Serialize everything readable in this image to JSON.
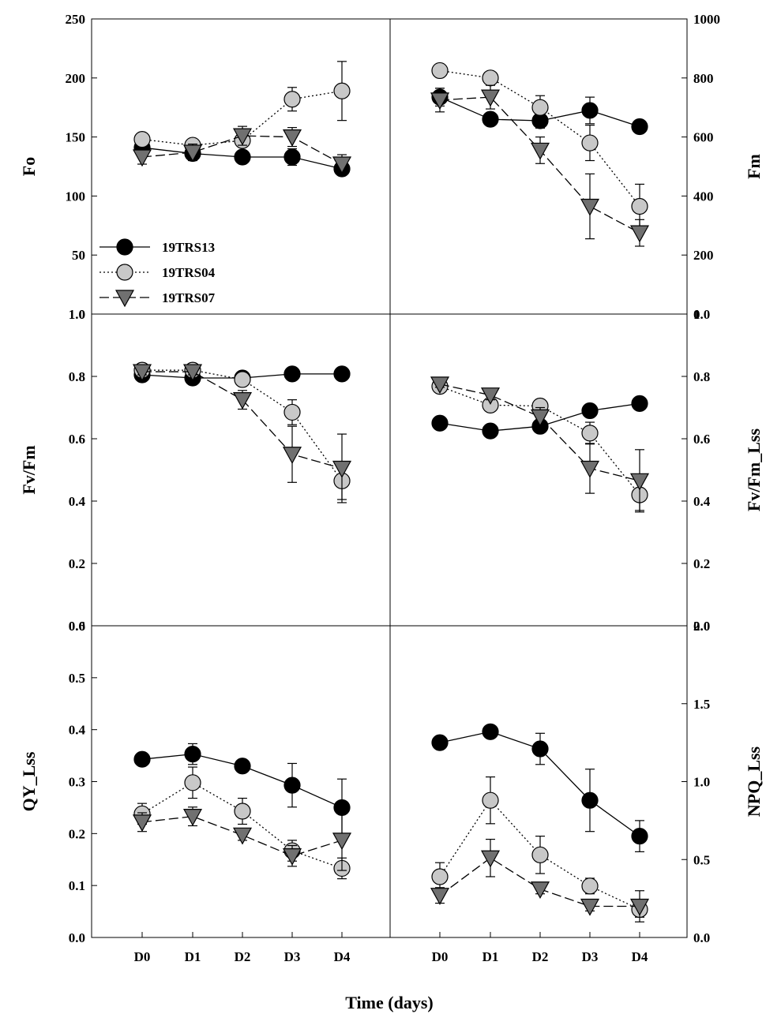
{
  "figure": {
    "x_axis_title": "Time (days)",
    "x_categories": [
      "D0",
      "D1",
      "D2",
      "D3",
      "D4"
    ]
  },
  "legend": [
    {
      "name": "19TRS13",
      "marker": "circle",
      "fill": "#000000",
      "line": "solid"
    },
    {
      "name": "19TRS04",
      "marker": "circle",
      "fill": "#c8c8c8",
      "line": "dotted"
    },
    {
      "name": "19TRS07",
      "marker": "triangle-down",
      "fill": "#707070",
      "line": "dashed"
    }
  ],
  "chart_data": [
    {
      "type": "line",
      "ylabel": "Fo",
      "yaxis_side": "left",
      "ylim": [
        0,
        250
      ],
      "yticks": [
        "0",
        "50",
        "100",
        "150",
        "200",
        "250"
      ],
      "categories": [
        "D0",
        "D1",
        "D2",
        "D3",
        "D4"
      ],
      "series": [
        {
          "name": "19TRS13",
          "values": [
            141,
            136,
            133,
            133,
            123
          ],
          "errors": [
            5,
            3,
            3,
            7,
            4
          ]
        },
        {
          "name": "19TRS04",
          "values": [
            148,
            143,
            147,
            182,
            189
          ],
          "errors": [
            4,
            3,
            4,
            10,
            25
          ]
        },
        {
          "name": "19TRS07",
          "values": [
            133,
            137,
            151,
            150,
            127
          ],
          "errors": [
            6,
            7,
            8,
            8,
            8
          ]
        }
      ]
    },
    {
      "type": "line",
      "ylabel": "Fm",
      "yaxis_side": "right",
      "ylim": [
        0,
        1000
      ],
      "yticks": [
        "0",
        "200",
        "400",
        "600",
        "800",
        "1000"
      ],
      "categories": [
        "D0",
        "D1",
        "D2",
        "D3",
        "D4"
      ],
      "series": [
        {
          "name": "19TRS13",
          "values": [
            735,
            660,
            655,
            690,
            635
          ],
          "errors": [
            30,
            20,
            25,
            45,
            15
          ]
        },
        {
          "name": "19TRS04",
          "values": [
            825,
            800,
            700,
            580,
            365
          ],
          "errors": [
            20,
            20,
            40,
            60,
            75
          ]
        },
        {
          "name": "19TRS07",
          "values": [
            725,
            735,
            555,
            365,
            275
          ],
          "errors": [
            40,
            40,
            45,
            110,
            45
          ]
        }
      ]
    },
    {
      "type": "line",
      "ylabel": "Fv/Fm",
      "yaxis_side": "left",
      "ylim": [
        0,
        1
      ],
      "yticks": [
        "0.0",
        "0.2",
        "0.4",
        "0.6",
        "0.8",
        "1.0"
      ],
      "categories": [
        "D0",
        "D1",
        "D2",
        "D3",
        "D4"
      ],
      "series": [
        {
          "name": "19TRS13",
          "values": [
            0.805,
            0.795,
            0.795,
            0.808,
            0.808
          ],
          "errors": [
            0.01,
            0.01,
            0.01,
            0.01,
            0.01
          ]
        },
        {
          "name": "19TRS04",
          "values": [
            0.82,
            0.82,
            0.79,
            0.685,
            0.465
          ],
          "errors": [
            0.01,
            0.01,
            0.015,
            0.04,
            0.06
          ]
        },
        {
          "name": "19TRS07",
          "values": [
            0.815,
            0.815,
            0.725,
            0.55,
            0.505
          ],
          "errors": [
            0.01,
            0.01,
            0.03,
            0.09,
            0.11
          ]
        }
      ]
    },
    {
      "type": "line",
      "ylabel": "Fv/Fm_Lss",
      "yaxis_side": "right",
      "ylim": [
        0,
        1
      ],
      "yticks": [
        "0.0",
        "0.2",
        "0.4",
        "0.6",
        "0.8",
        "1.0"
      ],
      "categories": [
        "D0",
        "D1",
        "D2",
        "D3",
        "D4"
      ],
      "series": [
        {
          "name": "19TRS13",
          "values": [
            0.65,
            0.625,
            0.64,
            0.69,
            0.713
          ],
          "errors": [
            0.01,
            0.01,
            0.01,
            0.02,
            0.01
          ]
        },
        {
          "name": "19TRS04",
          "values": [
            0.768,
            0.708,
            0.705,
            0.618,
            0.42
          ],
          "errors": [
            0.015,
            0.015,
            0.02,
            0.035,
            0.05
          ]
        },
        {
          "name": "19TRS07",
          "values": [
            0.775,
            0.74,
            0.67,
            0.505,
            0.465
          ],
          "errors": [
            0.01,
            0.015,
            0.03,
            0.08,
            0.1
          ]
        }
      ]
    },
    {
      "type": "line",
      "ylabel": "QY_Lss",
      "yaxis_side": "left",
      "ylim": [
        0,
        0.6
      ],
      "yticks": [
        "0.0",
        "0.1",
        "0.2",
        "0.3",
        "0.4",
        "0.5",
        "0.6"
      ],
      "categories": [
        "D0",
        "D1",
        "D2",
        "D3",
        "D4"
      ],
      "series": [
        {
          "name": "19TRS13",
          "values": [
            0.343,
            0.353,
            0.33,
            0.293,
            0.25
          ],
          "errors": [
            0.01,
            0.02,
            0.01,
            0.042,
            0.055
          ]
        },
        {
          "name": "19TRS04",
          "values": [
            0.238,
            0.298,
            0.243,
            0.167,
            0.133
          ],
          "errors": [
            0.02,
            0.03,
            0.025,
            0.02,
            0.02
          ]
        },
        {
          "name": "19TRS07",
          "values": [
            0.222,
            0.233,
            0.197,
            0.157,
            0.187
          ],
          "errors": [
            0.018,
            0.018,
            0.01,
            0.02,
            0.058
          ]
        }
      ]
    },
    {
      "type": "line",
      "ylabel": "NPQ_Lss",
      "yaxis_side": "right",
      "ylim": [
        0,
        2
      ],
      "yticks": [
        "0.0",
        "0.5",
        "1.0",
        "1.5",
        "2.0"
      ],
      "categories": [
        "D0",
        "D1",
        "D2",
        "D3",
        "D4"
      ],
      "series": [
        {
          "name": "19TRS13",
          "values": [
            1.25,
            1.32,
            1.21,
            0.88,
            0.65
          ],
          "errors": [
            0.03,
            0.03,
            0.1,
            0.2,
            0.1
          ]
        },
        {
          "name": "19TRS04",
          "values": [
            0.39,
            0.88,
            0.53,
            0.33,
            0.18
          ],
          "errors": [
            0.09,
            0.15,
            0.12,
            0.05,
            0.05
          ]
        },
        {
          "name": "19TRS07",
          "values": [
            0.27,
            0.51,
            0.31,
            0.2,
            0.2
          ],
          "errors": [
            0.05,
            0.12,
            0.03,
            0.03,
            0.1
          ]
        }
      ]
    }
  ]
}
